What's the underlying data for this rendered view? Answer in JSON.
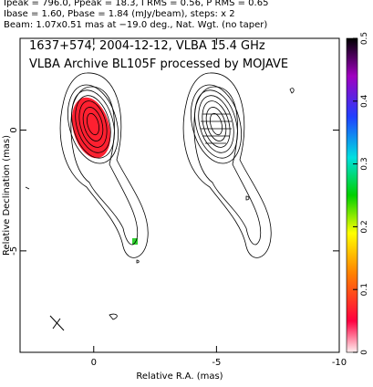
{
  "chart_data": {
    "type": "contour",
    "header": [
      "Ipeak = 796.0, Ppeak = 18.3, I RMS = 0.56, P RMS = 0.65",
      "Ibase = 1.60, Pbase = 1.84 (mJy/beam), steps: x 2",
      "Beam: 1.07x0.51 mas at −19.0 deg., Nat. Wgt. (no taper)"
    ],
    "title": [
      "1637+574, 2004-12-12, VLBA 15.4 GHz",
      "VLBA Archive BL105F processed by MOJAVE"
    ],
    "xlabel": "Relative R.A. (mas)",
    "ylabel": "Relative Declination (mas)",
    "xlim": [
      3,
      -10
    ],
    "ylim": [
      -9.2,
      3.8
    ],
    "xticks": [
      0,
      -5,
      -10
    ],
    "yticks": [
      -5,
      0
    ],
    "colorbar": {
      "lim": [
        0,
        0.5
      ],
      "ticks": [
        0,
        0.1,
        0.2,
        0.3,
        0.4,
        0.5
      ]
    }
  }
}
